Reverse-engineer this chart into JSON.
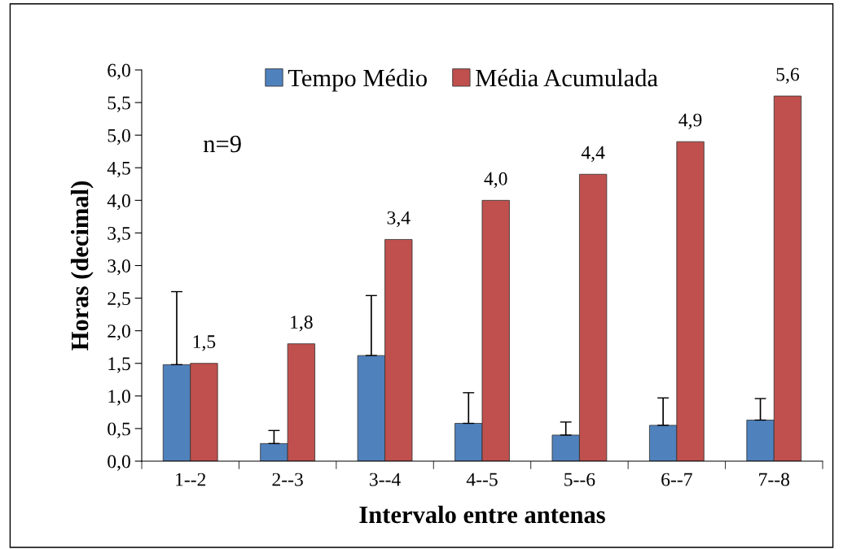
{
  "chart_data": {
    "type": "bar",
    "xlabel": "Intervalo entre antenas",
    "ylabel": "Horas (decimal)",
    "categories": [
      "1--2",
      "2--3",
      "3--4",
      "4--5",
      "5--6",
      "6--7",
      "7--8"
    ],
    "series": [
      {
        "name": "Tempo Médio",
        "color": "#4f81bd",
        "values": [
          1.48,
          0.27,
          1.62,
          0.58,
          0.4,
          0.55,
          0.63
        ],
        "errors": [
          [
            1.48,
            2.6
          ],
          [
            0.27,
            0.47
          ],
          [
            1.62,
            2.54
          ],
          [
            0.58,
            1.05
          ],
          [
            0.4,
            0.6
          ],
          [
            0.55,
            0.97
          ],
          [
            0.63,
            0.96
          ]
        ]
      },
      {
        "name": "Média Acumulada",
        "color": "#c0504d",
        "values": [
          1.5,
          1.8,
          3.4,
          4.0,
          4.4,
          4.9,
          5.6
        ],
        "value_labels": [
          "1,5",
          "1,8",
          "3,4",
          "4,0",
          "4,4",
          "4,9",
          "5,6"
        ]
      }
    ],
    "ylim": [
      0,
      6
    ],
    "yticks": [
      {
        "value": 0,
        "label": "0,0"
      },
      {
        "value": 0.5,
        "label": "0,5"
      },
      {
        "value": 1,
        "label": "1,0"
      },
      {
        "value": 1.5,
        "label": "1,5"
      },
      {
        "value": 2,
        "label": "2,0"
      },
      {
        "value": 2.5,
        "label": "2,5"
      },
      {
        "value": 3,
        "label": "3,0"
      },
      {
        "value": 3.5,
        "label": "3,5"
      },
      {
        "value": 4,
        "label": "4,0"
      },
      {
        "value": 4.5,
        "label": "4,5"
      },
      {
        "value": 5,
        "label": "5,0"
      },
      {
        "value": 5.5,
        "label": "5,5"
      },
      {
        "value": 6,
        "label": "6,0"
      }
    ],
    "annotations": [
      "n=9"
    ],
    "legend": "top",
    "grid": false
  }
}
